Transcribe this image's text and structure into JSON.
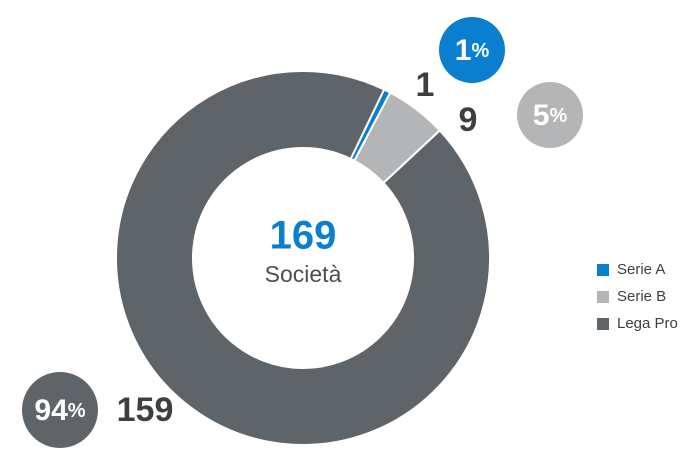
{
  "chart_data": {
    "type": "donut",
    "categories": [
      "Serie A",
      "Serie B",
      "Lega Pro"
    ],
    "values": [
      1,
      9,
      159
    ],
    "percentages": [
      1,
      5,
      94
    ],
    "percent_unit": "%",
    "colors": [
      "#0a7fcf",
      "#b4b5b6",
      "#5f6468"
    ],
    "total": 169,
    "total_label": "Società",
    "legend": "right"
  }
}
